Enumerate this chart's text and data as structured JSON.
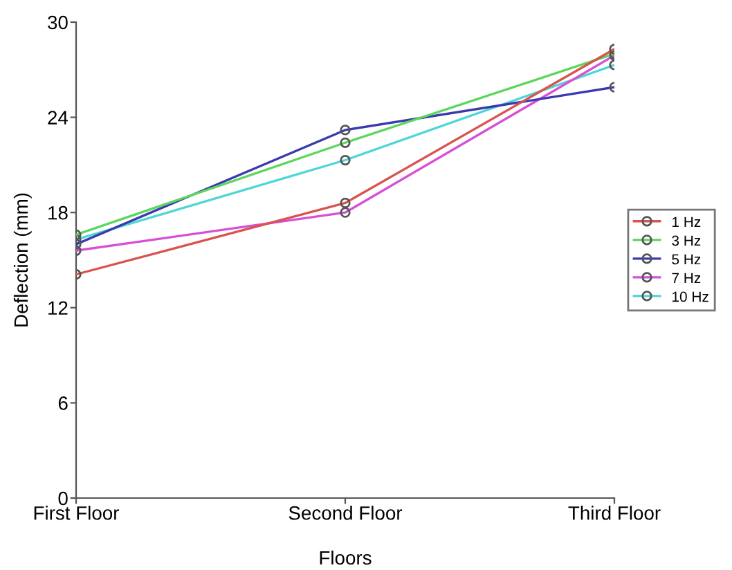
{
  "chart_data": {
    "type": "line",
    "xlabel": "Floors",
    "ylabel": "Deflection (mm)",
    "categories": [
      "First Floor",
      "Second Floor",
      "Third Floor"
    ],
    "series": [
      {
        "name": "1 Hz",
        "color": "#d9534f",
        "values": [
          14.1,
          18.6,
          28.3
        ]
      },
      {
        "name": "3 Hz",
        "color": "#5cd65c",
        "values": [
          16.6,
          22.4,
          28.0
        ]
      },
      {
        "name": "5 Hz",
        "color": "#3a3ab0",
        "values": [
          16.0,
          23.2,
          25.9
        ]
      },
      {
        "name": "7 Hz",
        "color": "#d64fd6",
        "values": [
          15.6,
          18.0,
          27.9
        ]
      },
      {
        "name": "10 Hz",
        "color": "#4fd6d6",
        "values": [
          16.3,
          21.3,
          27.3
        ]
      }
    ],
    "ylim": [
      0,
      30
    ],
    "yticks": [
      0,
      6,
      12,
      18,
      24,
      30
    ],
    "grid": false,
    "legend": "right",
    "marker": "circle",
    "line_style": "solid"
  }
}
